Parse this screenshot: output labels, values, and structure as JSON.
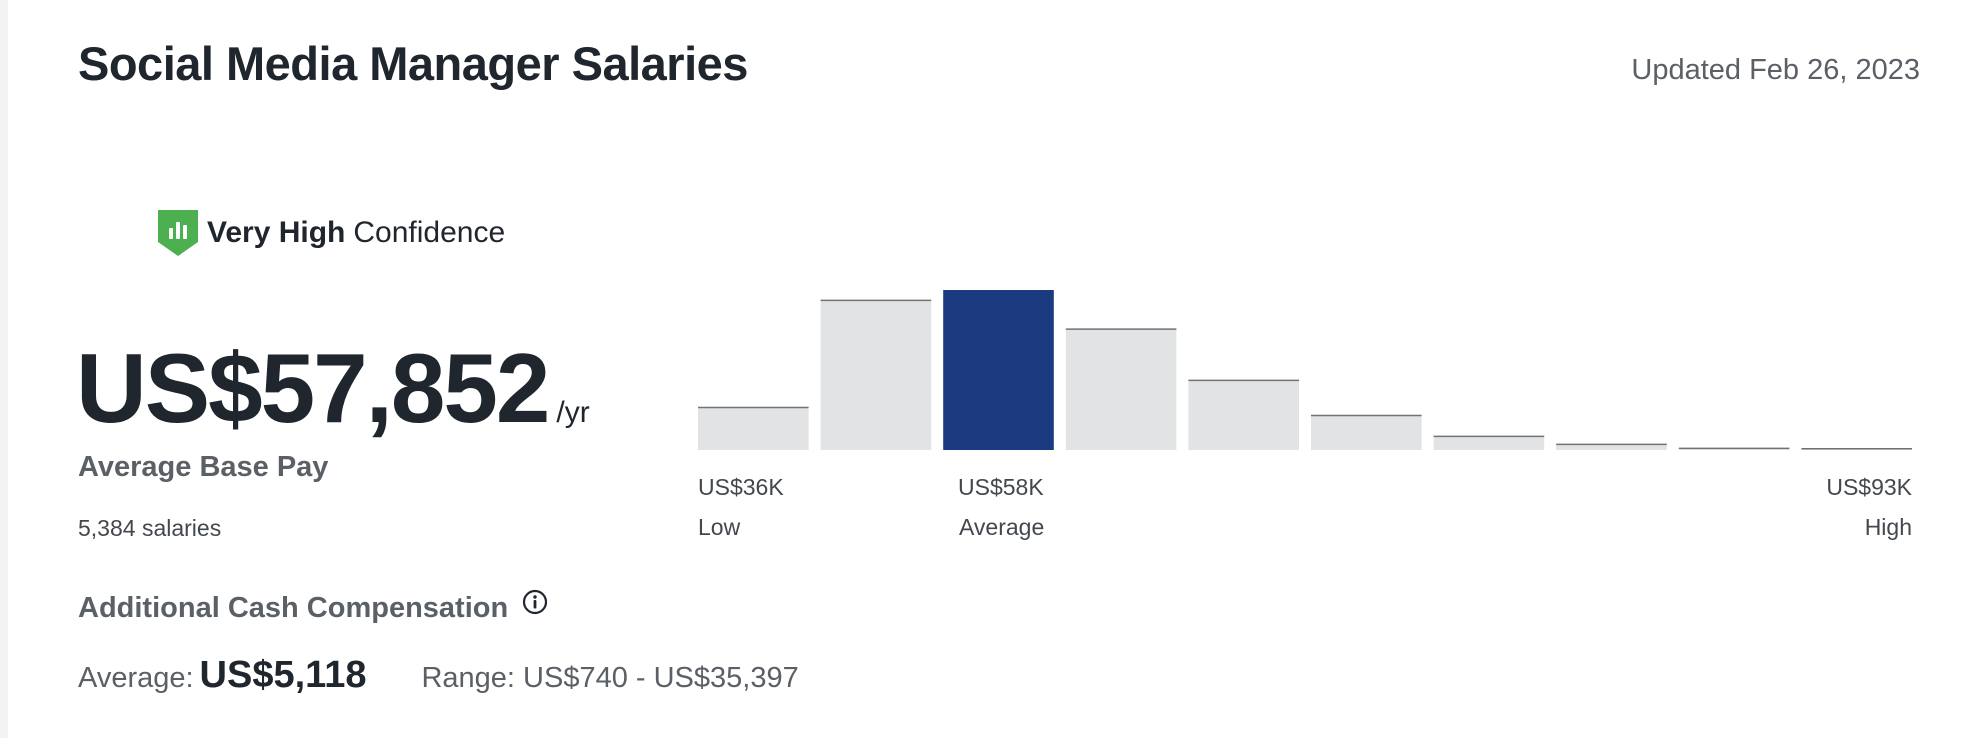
{
  "header": {
    "title": "Social Media Manager Salaries",
    "updated": "Updated Feb 26, 2023"
  },
  "confidence": {
    "strong": "Very High",
    "rest": "Confidence"
  },
  "salary": {
    "amount": "US$57,852",
    "unit": "/yr",
    "label": "Average Base Pay",
    "count": "5,384 salaries"
  },
  "additional": {
    "title": "Additional Cash Compensation",
    "average_label": "Average:",
    "average_value": "US$5,118",
    "range": "Range: US$740 - US$35,397"
  },
  "distribution": {
    "low_value": "US$36K",
    "low_label": "Low",
    "avg_value": "US$58K",
    "avg_label": "Average",
    "high_value": "US$93K",
    "high_label": "High"
  },
  "chart_data": {
    "type": "bar",
    "values": [
      27,
      94,
      100,
      76,
      44,
      22,
      9,
      4,
      1.5,
      0.6
    ],
    "highlight_index": 2
  },
  "colors": {
    "accent": "#1c3a7f",
    "bar": "#e2e3e5",
    "bar_top": "#6f747a",
    "shield": "#4caf50"
  },
  "icons": {
    "confidence": "shield-chart-icon",
    "info": "info-icon"
  }
}
